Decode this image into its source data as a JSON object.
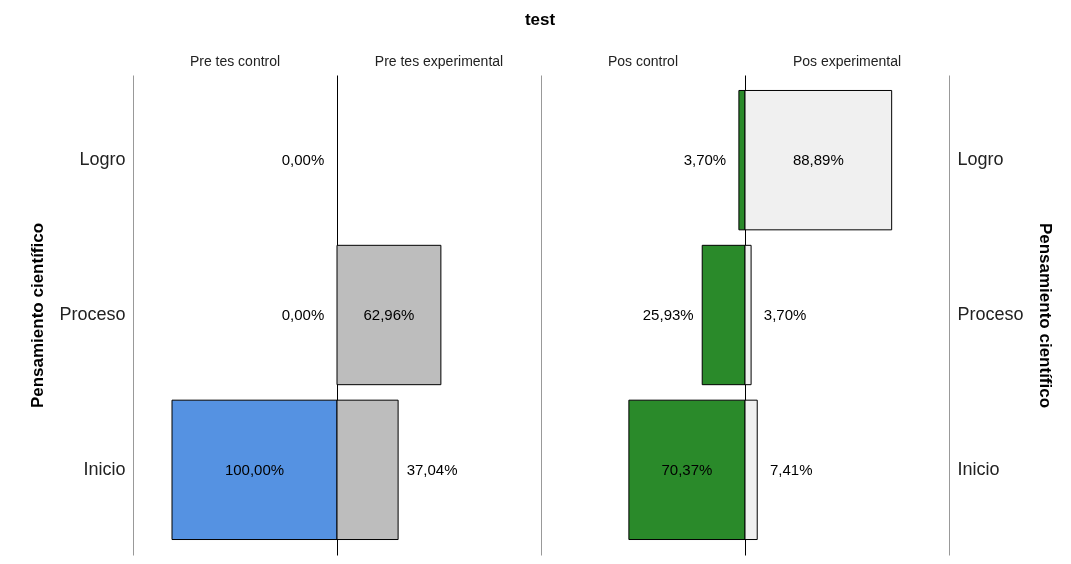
{
  "chart_data": [
    {
      "type": "bar",
      "orientation": "horizontal",
      "title": "Pre tes control",
      "annotations": [
        "test"
      ],
      "ylabel": "Pensamiento científico",
      "tick_labels": "y",
      "categories": [
        "Logro",
        "Proceso",
        "Inicio"
      ],
      "values": [
        0,
        0,
        100
      ],
      "color": "#5592e2",
      "value_labels": [
        "0,00%",
        "0,00%",
        "100,00%"
      ]
    },
    {
      "type": "bar",
      "orientation": "horizontal",
      "title": "Pre tes experimental",
      "tick_labels": false,
      "categories": [
        null,
        null,
        null
      ],
      "values": [
        0,
        62.96,
        37.04
      ],
      "color": "#bdbdbd",
      "value_labels": [
        null,
        "62,96%",
        "37,04%"
      ]
    },
    {
      "type": "bar",
      "orientation": "horizontal",
      "title": "Pos control",
      "tick_labels": false,
      "categories": [
        null,
        null,
        null
      ],
      "values": [
        3.7,
        25.93,
        70.37
      ],
      "color": "#2a8a2a",
      "value_labels": [
        "3,70%",
        "25,93%",
        "70,37%"
      ]
    },
    {
      "type": "bar",
      "orientation": "horizontal",
      "title": "Pos experimental",
      "ylabel": "Pensamiento científico",
      "tick_labels": "y",
      "categories": [
        "Logro",
        "Proceso",
        "Inicio"
      ],
      "values": [
        88.89,
        3.7,
        7.41
      ],
      "color": "#f0f0f0",
      "value_labels": [
        "88,89%",
        "3,70%",
        "7,41%"
      ]
    }
  ]
}
